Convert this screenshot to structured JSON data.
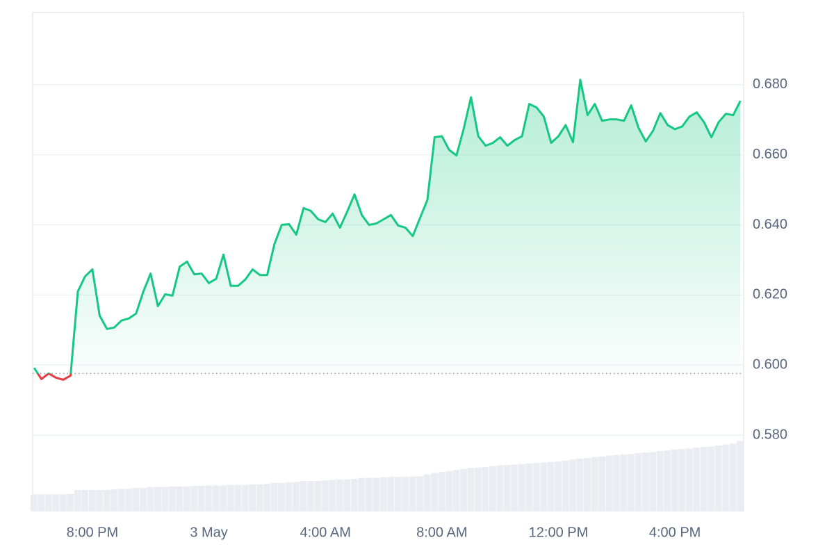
{
  "chart_data": {
    "type": "line",
    "x": [
      18,
      18.25,
      18.5,
      18.75,
      19,
      19.25,
      19.5,
      19.75,
      20,
      20.25,
      20.5,
      20.75,
      21,
      21.25,
      21.5,
      21.75,
      22,
      22.25,
      22.5,
      22.75,
      23,
      23.25,
      23.5,
      23.75,
      24,
      24.25,
      24.5,
      24.75,
      25,
      25.25,
      25.5,
      25.75,
      26,
      26.25,
      26.5,
      26.75,
      27,
      27.25,
      27.5,
      27.75,
      28,
      28.25,
      28.5,
      28.75,
      29,
      29.25,
      29.5,
      29.75,
      30,
      30.25,
      30.5,
      30.75,
      31,
      31.25,
      31.5,
      31.75,
      32,
      32.25,
      32.5,
      32.75,
      33,
      33.25,
      33.5,
      33.75,
      34,
      34.25,
      34.5,
      34.75,
      35,
      35.25,
      35.5,
      35.75,
      36,
      36.25,
      36.5,
      36.75,
      37,
      37.25,
      37.5,
      37.75,
      38,
      38.25,
      38.5,
      38.75,
      39,
      39.25,
      39.5,
      39.75,
      40,
      40.25,
      40.5,
      40.75,
      41,
      41.25,
      41.5,
      41.75,
      42,
      42.25
    ],
    "values": [
      0.5992,
      0.596,
      0.5976,
      0.5964,
      0.5958,
      0.597,
      0.621,
      0.6253,
      0.6273,
      0.6141,
      0.6103,
      0.6107,
      0.6127,
      0.6133,
      0.6147,
      0.621,
      0.6261,
      0.6168,
      0.6202,
      0.6198,
      0.6281,
      0.6295,
      0.6259,
      0.6261,
      0.6234,
      0.6246,
      0.6315,
      0.6226,
      0.6226,
      0.6244,
      0.6273,
      0.6257,
      0.6257,
      0.6345,
      0.64,
      0.6402,
      0.6372,
      0.6448,
      0.644,
      0.6416,
      0.6408,
      0.6432,
      0.6392,
      0.6438,
      0.6487,
      0.6428,
      0.64,
      0.6404,
      0.6416,
      0.6428,
      0.6398,
      0.6392,
      0.6368,
      0.642,
      0.6471,
      0.665,
      0.6653,
      0.6614,
      0.6598,
      0.6675,
      0.6764,
      0.6653,
      0.6626,
      0.6634,
      0.665,
      0.6626,
      0.6642,
      0.6653,
      0.6745,
      0.6735,
      0.6709,
      0.6634,
      0.6653,
      0.6685,
      0.6636,
      0.6814,
      0.6713,
      0.6745,
      0.6697,
      0.6701,
      0.6701,
      0.6697,
      0.6741,
      0.6677,
      0.6638,
      0.6669,
      0.6719,
      0.6685,
      0.6673,
      0.6681,
      0.6709,
      0.6721,
      0.6693,
      0.665,
      0.6693,
      0.6717,
      0.6713,
      0.6754
    ],
    "volume": [
      3.3,
      3.3,
      3.3,
      3.3,
      3.3,
      3.4,
      4.2,
      4.2,
      4.2,
      4.2,
      4.2,
      4.3,
      4.4,
      4.4,
      4.6,
      4.6,
      4.8,
      4.8,
      4.8,
      4.9,
      4.9,
      4.9,
      5.0,
      5.0,
      5.1,
      5.1,
      5.1,
      5.2,
      5.2,
      5.2,
      5.3,
      5.3,
      5.4,
      5.6,
      5.6,
      5.7,
      5.8,
      6.0,
      6.0,
      6.0,
      6.1,
      6.2,
      6.3,
      6.3,
      6.4,
      6.6,
      6.6,
      6.6,
      6.7,
      6.8,
      6.8,
      6.8,
      6.9,
      6.9,
      7.3,
      7.6,
      7.8,
      8.0,
      8.2,
      8.4,
      8.6,
      8.7,
      8.8,
      9.0,
      9.1,
      9.2,
      9.3,
      9.4,
      9.5,
      9.6,
      9.7,
      9.8,
      9.9,
      10.1,
      10.3,
      10.5,
      10.6,
      10.8,
      10.9,
      11.1,
      11.2,
      11.3,
      11.4,
      11.6,
      11.7,
      11.8,
      12.0,
      12.1,
      12.3,
      12.4,
      12.5,
      12.7,
      12.8,
      12.9,
      13.1,
      13.3,
      13.5,
      14.0
    ],
    "baseline": 0.5976,
    "color": "#16c784",
    "down_color": "#ea3943",
    "volume_color": "#e9edf2",
    "xlim": [
      17.95,
      42.36
    ],
    "xticks": [
      {
        "value": 20,
        "label": "8:00 PM"
      },
      {
        "value": 24,
        "label": "3 May"
      },
      {
        "value": 28,
        "label": "4:00 AM"
      },
      {
        "value": 32,
        "label": "8:00 AM"
      },
      {
        "value": 36,
        "label": "12:00 PM"
      },
      {
        "value": 40,
        "label": "4:00 PM"
      }
    ],
    "ylim": [
      0.5584,
      0.7006
    ],
    "yticks": [
      {
        "value": 0.58,
        "label": "0.580"
      },
      {
        "value": 0.6,
        "label": "0.600"
      },
      {
        "value": 0.62,
        "label": "0.620"
      },
      {
        "value": 0.64,
        "label": "0.640"
      },
      {
        "value": 0.66,
        "label": "0.660"
      },
      {
        "value": 0.68,
        "label": "0.680"
      }
    ],
    "y2lim": [
      0,
      100
    ],
    "grid": true
  }
}
